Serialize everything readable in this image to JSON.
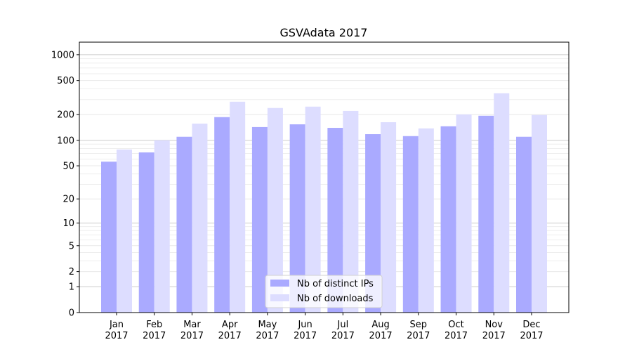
{
  "chart_data": {
    "type": "bar",
    "title": "GSVAdata 2017",
    "xlabel": "",
    "ylabel": "",
    "yscale": "log10(1+y)",
    "ylim": [
      0,
      1400
    ],
    "yticks": [
      0,
      1,
      2,
      5,
      10,
      20,
      50,
      100,
      200,
      500,
      1000
    ],
    "grid": true,
    "legend_placement": "lower center",
    "categories": [
      "Jan\n2017",
      "Feb\n2017",
      "Mar\n2017",
      "Apr\n2017",
      "May\n2017",
      "Jun\n2017",
      "Jul\n2017",
      "Aug\n2017",
      "Sep\n2017",
      "Oct\n2017",
      "Nov\n2017",
      "Dec\n2017"
    ],
    "series": [
      {
        "name": "Nb of distinct IPs",
        "color": "#aaaaff",
        "values": [
          56,
          72,
          110,
          187,
          143,
          154,
          140,
          118,
          112,
          146,
          194,
          110
        ]
      },
      {
        "name": "Nb of downloads",
        "color": "#ddddff",
        "values": [
          78,
          100,
          157,
          283,
          239,
          248,
          221,
          163,
          138,
          201,
          355,
          198
        ]
      }
    ]
  }
}
